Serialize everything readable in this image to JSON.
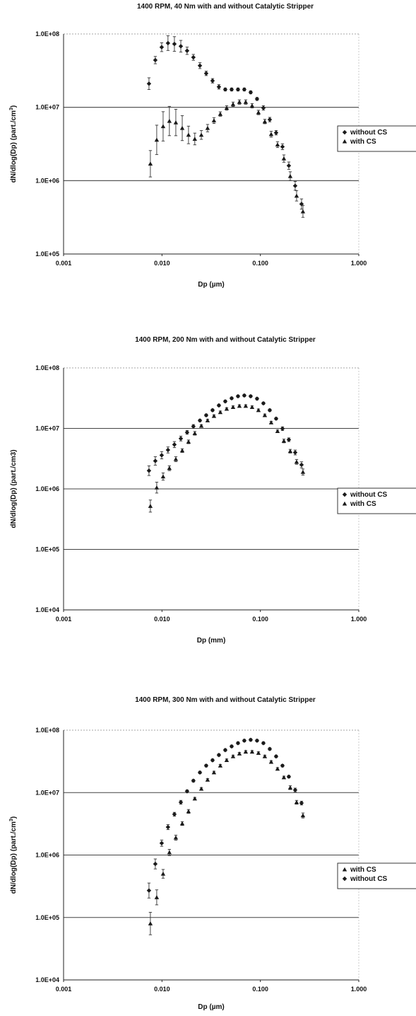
{
  "chart_data": [
    {
      "type": "scatter",
      "title": "1400 RPM, 40 Nm with and without Catalytic Stripper",
      "xlabel": "Dp (µm)",
      "ylabel": "dN/dlog(Dp) (part./cm",
      "ylabel_sup": "3",
      "ylabel_end": ")",
      "xscale": "log",
      "yscale": "log",
      "xlim": [
        0.001,
        1.0
      ],
      "ylim": [
        100000,
        100000000
      ],
      "xticks": [
        "0.001",
        "0.010",
        "0.100",
        "1.000"
      ],
      "yticks": [
        "1.0E+05",
        "1.0E+06",
        "1.0E+07",
        "1.0E+08"
      ],
      "grid": "horizontal",
      "legend_position": "right",
      "series": [
        {
          "name": "without CS",
          "marker": "diamond",
          "color": "#1a1a1a",
          "x": [
            0.0075,
            0.0087,
            0.0101,
            0.0117,
            0.0136,
            0.0158,
            0.0183,
            0.0212,
            0.0247,
            0.0286,
            0.0332,
            0.0385,
            0.0447,
            0.0519,
            0.0602,
            0.0698,
            0.081,
            0.094,
            0.1091,
            0.1266,
            0.1469,
            0.1705,
            0.1978,
            0.2295,
            0.2663
          ],
          "y": [
            21000000,
            44000000,
            66000000,
            75000000,
            73000000,
            68000000,
            59000000,
            48000000,
            37000000,
            29000000,
            23000000,
            19000000,
            17500000,
            17500000,
            17500000,
            17500000,
            16000000,
            13000000,
            9800000,
            6800000,
            4500000,
            2900000,
            1600000,
            850000,
            480000
          ],
          "err": [
            0.08,
            0.05,
            0.06,
            0.1,
            0.1,
            0.08,
            0.05,
            0.04,
            0.04,
            0.03,
            0.03,
            0.03,
            0.02,
            0.02,
            0.02,
            0.02,
            0.02,
            0.02,
            0.03,
            0.03,
            0.03,
            0.04,
            0.05,
            0.06,
            0.07
          ]
        },
        {
          "name": "with CS",
          "marker": "triangle",
          "color": "#1a1a1a",
          "x": [
            0.0075,
            0.0087,
            0.0101,
            0.0117,
            0.0136,
            0.0158,
            0.0183,
            0.0212,
            0.0247,
            0.0286,
            0.0332,
            0.0385,
            0.0447,
            0.0519,
            0.0602,
            0.0698,
            0.081,
            0.094,
            0.1091,
            0.1266,
            0.1469,
            0.1705,
            0.1978,
            0.2295,
            0.2663
          ],
          "y": [
            1700000,
            3600000,
            5500000,
            6500000,
            6200000,
            5200000,
            4200000,
            3700000,
            4200000,
            5200000,
            6600000,
            8100000,
            9800000,
            11000000,
            11800000,
            11800000,
            10500000,
            8500000,
            6400000,
            4300000,
            3100000,
            2000000,
            1150000,
            620000,
            380000
          ],
          "err": [
            0.18,
            0.2,
            0.2,
            0.2,
            0.18,
            0.17,
            0.12,
            0.08,
            0.06,
            0.05,
            0.04,
            0.03,
            0.03,
            0.03,
            0.03,
            0.03,
            0.03,
            0.03,
            0.03,
            0.04,
            0.04,
            0.05,
            0.06,
            0.07,
            0.08
          ]
        }
      ]
    },
    {
      "type": "scatter",
      "title": "1400 RPM, 200 Nm with and without Catalytic Stripper",
      "xlabel": "Dp (mm)",
      "ylabel": "dN/dlog(Dp) (part./cm3)",
      "ylabel_sup": "",
      "ylabel_end": "",
      "xscale": "log",
      "yscale": "log",
      "xlim": [
        0.001,
        1.0
      ],
      "ylim": [
        10000,
        100000000
      ],
      "xticks": [
        "0.001",
        "0.010",
        "0.100",
        "1.000"
      ],
      "yticks": [
        "1.0E+04",
        "1.0E+05",
        "1.0E+06",
        "1.0E+07",
        "1.0E+08"
      ],
      "grid": "horizontal",
      "legend_position": "right",
      "series": [
        {
          "name": "without CS",
          "marker": "diamond",
          "color": "#1a1a1a",
          "x": [
            0.0075,
            0.0087,
            0.0101,
            0.0117,
            0.0136,
            0.0158,
            0.0183,
            0.0212,
            0.0247,
            0.0286,
            0.0332,
            0.0385,
            0.0447,
            0.0519,
            0.0602,
            0.0698,
            0.081,
            0.094,
            0.1091,
            0.1266,
            0.1469,
            0.1705,
            0.1978,
            0.2295,
            0.2663
          ],
          "y": [
            2000000,
            2900000,
            3600000,
            4400000,
            5400000,
            6800000,
            8600000,
            10800000,
            13500000,
            16500000,
            20000000,
            24000000,
            28000000,
            31500000,
            34000000,
            35000000,
            34000000,
            31000000,
            26000000,
            20000000,
            14500000,
            9900000,
            6500000,
            4000000,
            2500000
          ],
          "err": [
            0.08,
            0.07,
            0.06,
            0.05,
            0.05,
            0.04,
            0.03,
            0.03,
            0.02,
            0.02,
            0.02,
            0.02,
            0.02,
            0.02,
            0.02,
            0.02,
            0.02,
            0.02,
            0.02,
            0.02,
            0.02,
            0.03,
            0.03,
            0.04,
            0.05
          ]
        },
        {
          "name": "with CS",
          "marker": "triangle",
          "color": "#1a1a1a",
          "x": [
            0.0075,
            0.0087,
            0.0101,
            0.0117,
            0.0136,
            0.0158,
            0.0183,
            0.0212,
            0.0247,
            0.0286,
            0.0332,
            0.0385,
            0.0447,
            0.0519,
            0.0602,
            0.0698,
            0.081,
            0.094,
            0.1091,
            0.1266,
            0.1469,
            0.1705,
            0.1978,
            0.2295,
            0.2663
          ],
          "y": [
            520000,
            1050000,
            1600000,
            2200000,
            3100000,
            4300000,
            6000000,
            8300000,
            11000000,
            13500000,
            16000000,
            18500000,
            21000000,
            22500000,
            23500000,
            23500000,
            22500000,
            20000000,
            16500000,
            12500000,
            9000000,
            6200000,
            4200000,
            2800000,
            1900000
          ],
          "err": [
            0.1,
            0.09,
            0.06,
            0.04,
            0.04,
            0.03,
            0.03,
            0.03,
            0.02,
            0.02,
            0.02,
            0.02,
            0.02,
            0.02,
            0.02,
            0.02,
            0.02,
            0.02,
            0.02,
            0.02,
            0.02,
            0.03,
            0.03,
            0.04,
            0.05
          ]
        }
      ]
    },
    {
      "type": "scatter",
      "title": "1400 RPM, 300 Nm with and without Catalytic Stripper",
      "xlabel": "Dp (µm)",
      "ylabel": "dN/dlog(Dp) (part./cm",
      "ylabel_sup": "3",
      "ylabel_end": ")",
      "xscale": "log",
      "yscale": "log",
      "xlim": [
        0.001,
        1.0
      ],
      "ylim": [
        10000,
        100000000
      ],
      "xticks": [
        "0.001",
        "0.010",
        "0.100",
        "1.000"
      ],
      "yticks": [
        "1.0E+04",
        "1.0E+05",
        "1.0E+06",
        "1.0E+07",
        "1.0E+08"
      ],
      "grid": "horizontal",
      "legend_position": "right",
      "series": [
        {
          "name": "with CS",
          "marker": "triangle",
          "color": "#1a1a1a",
          "x": [
            0.0075,
            0.0087,
            0.0101,
            0.0117,
            0.0136,
            0.0158,
            0.0183,
            0.0212,
            0.0247,
            0.0286,
            0.0332,
            0.0385,
            0.0447,
            0.0519,
            0.0602,
            0.0698,
            0.081,
            0.094,
            0.1091,
            0.1266,
            0.1469,
            0.1705,
            0.1978,
            0.2295,
            0.2663
          ],
          "y": [
            80000,
            210000,
            500000,
            1100000,
            1900000,
            3200000,
            5000000,
            8000000,
            11500000,
            16000000,
            21000000,
            27000000,
            33000000,
            38000000,
            42000000,
            45000000,
            45000000,
            43000000,
            38000000,
            31000000,
            24000000,
            17500000,
            12000000,
            7000000,
            4300000
          ],
          "err": [
            0.18,
            0.12,
            0.07,
            0.05,
            0.04,
            0.03,
            0.03,
            0.02,
            0.02,
            0.02,
            0.02,
            0.02,
            0.02,
            0.02,
            0.02,
            0.02,
            0.02,
            0.02,
            0.02,
            0.02,
            0.02,
            0.02,
            0.03,
            0.03,
            0.04
          ]
        },
        {
          "name": "without CS",
          "marker": "diamond",
          "color": "#1a1a1a",
          "x": [
            0.0075,
            0.0087,
            0.0101,
            0.0117,
            0.0136,
            0.0158,
            0.0183,
            0.0212,
            0.0247,
            0.0286,
            0.0332,
            0.0385,
            0.0447,
            0.0519,
            0.0602,
            0.0698,
            0.081,
            0.094,
            0.1091,
            0.1266,
            0.1469,
            0.1705,
            0.1978,
            0.2295,
            0.2663
          ],
          "y": [
            270000,
            720000,
            1550000,
            2800000,
            4500000,
            7000000,
            10500000,
            15500000,
            21000000,
            27000000,
            33000000,
            40000000,
            48000000,
            55000000,
            62000000,
            68000000,
            70000000,
            68000000,
            62000000,
            50000000,
            38000000,
            27000000,
            18000000,
            11000000,
            6800000
          ],
          "err": [
            0.12,
            0.08,
            0.05,
            0.04,
            0.03,
            0.03,
            0.02,
            0.02,
            0.02,
            0.02,
            0.02,
            0.02,
            0.02,
            0.02,
            0.02,
            0.02,
            0.02,
            0.02,
            0.02,
            0.02,
            0.02,
            0.02,
            0.02,
            0.03,
            0.03
          ]
        }
      ]
    }
  ]
}
